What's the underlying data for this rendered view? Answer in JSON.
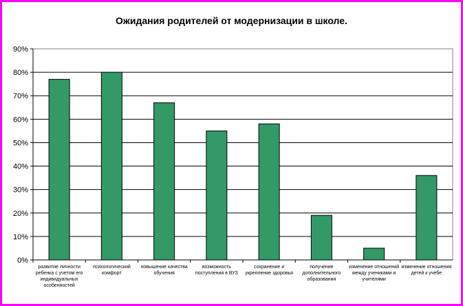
{
  "chart_data": {
    "type": "bar",
    "title": "Ожидания родителей от модернизации в школе.",
    "xlabel": "",
    "ylabel": "",
    "ylim": [
      0,
      90
    ],
    "yticks": [
      "0%",
      "10%",
      "20%",
      "30%",
      "40%",
      "50%",
      "60%",
      "70%",
      "80%",
      "90%"
    ],
    "grid": true,
    "legend": "none",
    "bar_color": "#339966",
    "categories": [
      "развитие личности ребенка с учетом его индивидуальных особенностей",
      "психологический комфорт",
      "повышение качества обучения",
      "возможность поступления в ВУЗ",
      "сохранение и укрепление здоровья",
      "получение дополнительного образования",
      "изменение отношений между учениками и учителями",
      "изменение отношения детей к учебе"
    ],
    "values": [
      77,
      80,
      67,
      55,
      58,
      19,
      5,
      36
    ]
  }
}
